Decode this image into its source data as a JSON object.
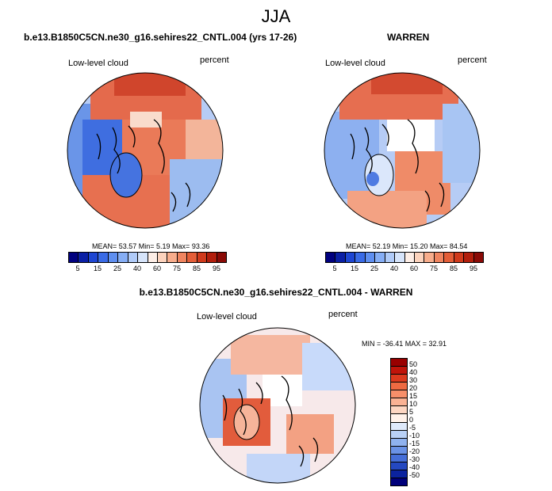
{
  "season": "JJA",
  "panels": [
    {
      "title": "b.e13.B1850C5CN.ne30_g16.sehires22_CNTL.004 (yrs 17-26)",
      "variable": "Low-level cloud",
      "units": "percent",
      "stats": "MEAN=  53.57  Min=   5.19  Max=  93.36"
    },
    {
      "title": "WARREN",
      "variable": "Low-level cloud",
      "units": "percent",
      "stats": "MEAN=  52.19  Min=  15.20  Max=  84.54"
    },
    {
      "title": "b.e13.B1850C5CN.ne30_g16.sehires22_CNTL.004 - WARREN",
      "variable": "Low-level cloud",
      "units": "percent",
      "stats": "MIN = -36.41  MAX =  32.91"
    }
  ],
  "colorbar_abs": {
    "ticks": [
      "5",
      "15",
      "25",
      "40",
      "60",
      "75",
      "85",
      "95"
    ],
    "colors": [
      "#00007f",
      "#0a1fa5",
      "#1e46d2",
      "#3a6be6",
      "#5f8ff0",
      "#86aef5",
      "#b0cbf8",
      "#d6e4fa",
      "#fdeee6",
      "#fcd3bd",
      "#f8ad8c",
      "#f08560",
      "#e45e38",
      "#d03a1c",
      "#b21e0c",
      "#8a0a06"
    ]
  },
  "colorbar_diff": {
    "ticks": [
      "50",
      "40",
      "30",
      "20",
      "15",
      "10",
      "5",
      "0",
      "-5",
      "-10",
      "-15",
      "-20",
      "-30",
      "-40",
      "-50"
    ],
    "colors": [
      "#990000",
      "#c0140a",
      "#dc3a1e",
      "#ee6a42",
      "#f68f6a",
      "#f9b294",
      "#fcd6c2",
      "#fff2ea",
      "#dfeafb",
      "#b9d1f6",
      "#8fb2ef",
      "#6a92e6",
      "#456ed8",
      "#2448c0",
      "#0b239f",
      "#00007a"
    ]
  },
  "colors": {
    "ocean_outline": "#000000",
    "land_hole": "#ffffff"
  }
}
